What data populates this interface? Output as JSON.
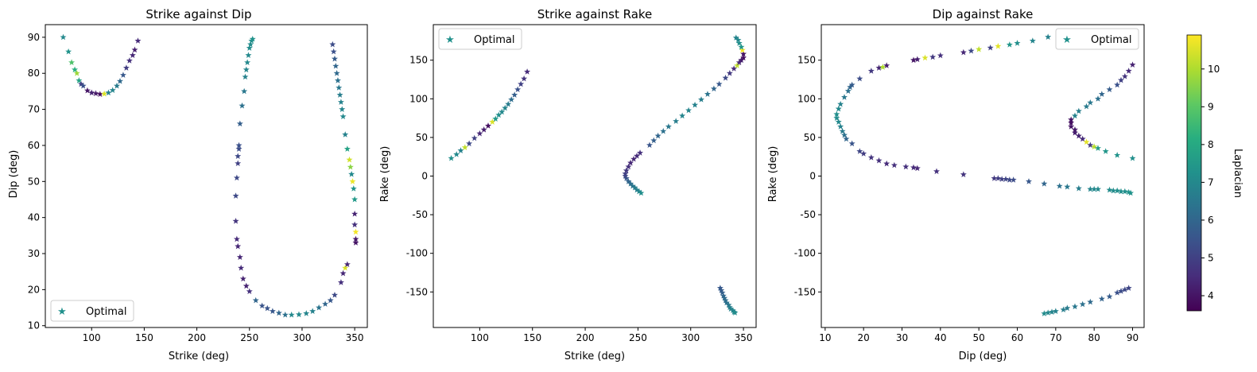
{
  "colorbar": {
    "label": "Laplacian",
    "min": 3.6,
    "max": 10.9,
    "ticks": [
      4,
      5,
      6,
      7,
      8,
      9,
      10
    ],
    "colormap": "viridis"
  },
  "chart_data": [
    {
      "type": "scatter",
      "title": "Strike against Dip",
      "xlabel": "Strike (deg)",
      "ylabel": "Dip (deg)",
      "xlim": [
        56,
        362
      ],
      "ylim": [
        9.5,
        93.5
      ],
      "xticks": [
        50,
        100,
        150,
        200,
        250,
        300,
        350
      ],
      "yticks": [
        10,
        20,
        30,
        40,
        50,
        60,
        70,
        80,
        90
      ],
      "legend": "lower left",
      "legend_label": "Optimal",
      "marker": "star",
      "points": [
        [
          73,
          90,
          7.0
        ],
        [
          78,
          86,
          7.3
        ],
        [
          81,
          83,
          8.8
        ],
        [
          84,
          81,
          8.2
        ],
        [
          86,
          80,
          9.8
        ],
        [
          88,
          78,
          7.8
        ],
        [
          90,
          77,
          5.0
        ],
        [
          92,
          76.5,
          5.4
        ],
        [
          96,
          75.2,
          4.0
        ],
        [
          100,
          74.6,
          4.3
        ],
        [
          104,
          74.4,
          4.1
        ],
        [
          108,
          74.2,
          3.8
        ],
        [
          112,
          74.3,
          10.5
        ],
        [
          116,
          74.6,
          6.8
        ],
        [
          120,
          75.3,
          6.9
        ],
        [
          124,
          76.5,
          6.6
        ],
        [
          127,
          77.8,
          6.1
        ],
        [
          130,
          79.5,
          5.6
        ],
        [
          133,
          81.5,
          4.9
        ],
        [
          136,
          83.5,
          4.6
        ],
        [
          139,
          85,
          4.4
        ],
        [
          141,
          86.5,
          4.2
        ],
        [
          144,
          89,
          4.5
        ],
        [
          237,
          46,
          5.2
        ],
        [
          238,
          51,
          5.2
        ],
        [
          239,
          55,
          5.0
        ],
        [
          239,
          57,
          5.2
        ],
        [
          240,
          59,
          5.3
        ],
        [
          240,
          60,
          5.4
        ],
        [
          241,
          66,
          5.8
        ],
        [
          243,
          71,
          6.3
        ],
        [
          245,
          75,
          6.5
        ],
        [
          246,
          79,
          6.8
        ],
        [
          247,
          81,
          6.9
        ],
        [
          248,
          83,
          7.0
        ],
        [
          249,
          85,
          7.0
        ],
        [
          250,
          87,
          7.1
        ],
        [
          251,
          88,
          7.1
        ],
        [
          252,
          89,
          7.2
        ],
        [
          253,
          89.5,
          7.3
        ],
        [
          237,
          39,
          4.7
        ],
        [
          238,
          34,
          4.5
        ],
        [
          239,
          32,
          4.4
        ],
        [
          241,
          29,
          4.4
        ],
        [
          242,
          26,
          4.5
        ],
        [
          244,
          23,
          4.3
        ],
        [
          247,
          21,
          4.3
        ],
        [
          250,
          19.5,
          4.6
        ],
        [
          256,
          17,
          6.0
        ],
        [
          262,
          15.5,
          5.5
        ],
        [
          267,
          14.8,
          5.5
        ],
        [
          272,
          14,
          5.6
        ],
        [
          278,
          13.5,
          6.0
        ],
        [
          284,
          13,
          6.3
        ],
        [
          290,
          13,
          7.0
        ],
        [
          297,
          13.1,
          7.0
        ],
        [
          304,
          13.4,
          6.9
        ],
        [
          310,
          14,
          6.8
        ],
        [
          316,
          15,
          6.4
        ],
        [
          322,
          16,
          6.0
        ],
        [
          327,
          17,
          5.6
        ],
        [
          331,
          18.5,
          5.2
        ],
        [
          337,
          22,
          4.6
        ],
        [
          339,
          24.5,
          4.4
        ],
        [
          341,
          26,
          10.5
        ],
        [
          343,
          27,
          4.4
        ],
        [
          329,
          88,
          5.3
        ],
        [
          330,
          86,
          5.4
        ],
        [
          331,
          84,
          5.7
        ],
        [
          332,
          82,
          6.0
        ],
        [
          333,
          80,
          6.1
        ],
        [
          334,
          78,
          6.3
        ],
        [
          335,
          76,
          6.5
        ],
        [
          336,
          74,
          6.7
        ],
        [
          337,
          72,
          6.8
        ],
        [
          338,
          70,
          6.9
        ],
        [
          339,
          68,
          7.0
        ],
        [
          341,
          63,
          6.8
        ],
        [
          343,
          59,
          7.8
        ],
        [
          345,
          56,
          10.4
        ],
        [
          346,
          54,
          9.6
        ],
        [
          347,
          52,
          7.0
        ],
        [
          348,
          50,
          10.7
        ],
        [
          349,
          48,
          7.3
        ],
        [
          350,
          45,
          7.5
        ],
        [
          350,
          41,
          4.3
        ],
        [
          350,
          38,
          4.6
        ],
        [
          351,
          36,
          10.8
        ],
        [
          351,
          34,
          4.1
        ],
        [
          351,
          33,
          4.0
        ]
      ]
    },
    {
      "type": "scatter",
      "title": "Strike against Rake",
      "xlabel": "Strike (deg)",
      "ylabel": "Rake (deg)",
      "xlim": [
        56,
        362
      ],
      "ylim": [
        -196,
        196
      ],
      "xticks": [
        50,
        100,
        150,
        200,
        250,
        300,
        350
      ],
      "yticks": [
        -150,
        -100,
        -50,
        0,
        50,
        100,
        150
      ],
      "legend": "upper left",
      "legend_label": "Optimal",
      "marker": "star",
      "points": [
        [
          73,
          23,
          7.2
        ],
        [
          78,
          28,
          7.0
        ],
        [
          82,
          33,
          6.8
        ],
        [
          86,
          37,
          10.2
        ],
        [
          90,
          42,
          5.2
        ],
        [
          95,
          49,
          5.0
        ],
        [
          100,
          55,
          4.4
        ],
        [
          104,
          60,
          4.2
        ],
        [
          108,
          65,
          3.9
        ],
        [
          112,
          70,
          10.5
        ],
        [
          115,
          74,
          7.5
        ],
        [
          118,
          79,
          7.2
        ],
        [
          121,
          83,
          7.0
        ],
        [
          124,
          88,
          6.9
        ],
        [
          127,
          93,
          6.6
        ],
        [
          130,
          99,
          6.2
        ],
        [
          133,
          105,
          5.8
        ],
        [
          136,
          112,
          5.4
        ],
        [
          139,
          119,
          5.0
        ],
        [
          142,
          126,
          4.7
        ],
        [
          145,
          135,
          4.5
        ],
        [
          253,
          -22,
          7.2
        ],
        [
          251,
          -20,
          7.0
        ],
        [
          249,
          -18,
          6.8
        ],
        [
          247,
          -15,
          6.7
        ],
        [
          245,
          -13,
          6.5
        ],
        [
          243,
          -10,
          6.3
        ],
        [
          241,
          -7,
          6.0
        ],
        [
          239,
          -3,
          5.6
        ],
        [
          238,
          0,
          5.2
        ],
        [
          238,
          3,
          5.0
        ],
        [
          239,
          7,
          4.8
        ],
        [
          241,
          12,
          4.6
        ],
        [
          243,
          17,
          4.4
        ],
        [
          246,
          22,
          4.4
        ],
        [
          249,
          26,
          4.5
        ],
        [
          252,
          30,
          4.6
        ],
        [
          261,
          40,
          5.5
        ],
        [
          265,
          46,
          5.8
        ],
        [
          269,
          52,
          6.0
        ],
        [
          274,
          58,
          6.3
        ],
        [
          279,
          64,
          6.5
        ],
        [
          286,
          71,
          6.7
        ],
        [
          292,
          78,
          6.9
        ],
        [
          298,
          85,
          6.9
        ],
        [
          304,
          92,
          6.8
        ],
        [
          310,
          99,
          6.7
        ],
        [
          316,
          106,
          6.4
        ],
        [
          322,
          113,
          6.0
        ],
        [
          327,
          119,
          5.6
        ],
        [
          333,
          127,
          5.2
        ],
        [
          337,
          133,
          4.8
        ],
        [
          341,
          139,
          4.5
        ],
        [
          344,
          143,
          10.2
        ],
        [
          346,
          147,
          4.4
        ],
        [
          348,
          150,
          4.2
        ],
        [
          350,
          153,
          3.9
        ],
        [
          350,
          158,
          4.0
        ],
        [
          349,
          163,
          10.8
        ],
        [
          348,
          167,
          7.4
        ],
        [
          346,
          172,
          7.2
        ],
        [
          345,
          176,
          7.0
        ],
        [
          343,
          179,
          6.9
        ],
        [
          328,
          -145,
          5.6
        ],
        [
          329,
          -148,
          5.7
        ],
        [
          330,
          -151,
          5.8
        ],
        [
          331,
          -155,
          6.0
        ],
        [
          332,
          -158,
          6.1
        ],
        [
          333,
          -161,
          6.2
        ],
        [
          334,
          -164,
          6.3
        ],
        [
          336,
          -167,
          6.5
        ],
        [
          337,
          -170,
          6.7
        ],
        [
          338,
          -172,
          6.8
        ],
        [
          340,
          -174,
          6.9
        ],
        [
          341,
          -176,
          7.0
        ],
        [
          342,
          -177,
          7.1
        ]
      ]
    },
    {
      "type": "scatter",
      "title": "Dip against Rake",
      "xlabel": "Dip (deg)",
      "ylabel": "Rake (deg)",
      "xlim": [
        9,
        93
      ],
      "ylim": [
        -196,
        196
      ],
      "xticks": [
        10,
        20,
        30,
        40,
        50,
        60,
        70,
        80,
        90
      ],
      "yticks": [
        -150,
        -100,
        -50,
        0,
        50,
        100,
        150
      ],
      "legend": "upper right",
      "legend_label": "Optimal",
      "marker": "star",
      "points": [
        [
          13,
          80,
          7.2
        ],
        [
          13,
          75,
          7.1
        ],
        [
          13.5,
          70,
          7.0
        ],
        [
          14,
          64,
          6.8
        ],
        [
          14.5,
          58,
          6.6
        ],
        [
          15,
          53,
          6.3
        ],
        [
          15.5,
          48,
          6.0
        ],
        [
          17,
          42,
          5.5
        ],
        [
          19,
          32,
          5.1
        ],
        [
          20,
          29,
          4.9
        ],
        [
          22,
          24,
          4.7
        ],
        [
          24,
          20,
          4.6
        ],
        [
          26,
          16,
          4.5
        ],
        [
          28,
          14,
          4.6
        ],
        [
          31,
          12,
          4.6
        ],
        [
          33,
          11,
          4.5
        ],
        [
          34,
          10,
          4.4
        ],
        [
          39,
          6,
          4.6
        ],
        [
          46,
          2,
          4.7
        ],
        [
          54,
          -3,
          4.8
        ],
        [
          55,
          -3,
          4.9
        ],
        [
          56,
          -4,
          5.0
        ],
        [
          57,
          -4,
          5.1
        ],
        [
          58,
          -5,
          5.2
        ],
        [
          59,
          -5,
          5.3
        ],
        [
          63,
          -7,
          5.6
        ],
        [
          67,
          -10,
          6.0
        ],
        [
          71,
          -13,
          6.3
        ],
        [
          73,
          -14,
          6.5
        ],
        [
          76,
          -16,
          6.7
        ],
        [
          79,
          -17,
          6.9
        ],
        [
          80,
          -17,
          7.0
        ],
        [
          81,
          -17,
          7.0
        ],
        [
          84,
          -18,
          7.1
        ],
        [
          85,
          -19,
          7.1
        ],
        [
          86,
          -19,
          7.2
        ],
        [
          87,
          -20,
          7.2
        ],
        [
          88,
          -20,
          7.2
        ],
        [
          89,
          -21,
          7.3
        ],
        [
          89.5,
          -22,
          7.3
        ],
        [
          13.5,
          87,
          7.0
        ],
        [
          14,
          93,
          6.8
        ],
        [
          15,
          102,
          6.5
        ],
        [
          16,
          110,
          6.3
        ],
        [
          16.5,
          115,
          6.0
        ],
        [
          17,
          118,
          5.7
        ],
        [
          19,
          126,
          5.3
        ],
        [
          22,
          136,
          4.8
        ],
        [
          24,
          140,
          4.4
        ],
        [
          26,
          143,
          4.2
        ],
        [
          25,
          141,
          10.0
        ],
        [
          33,
          150,
          4.0
        ],
        [
          34,
          151,
          4.2
        ],
        [
          36,
          153,
          10.5
        ],
        [
          38,
          154,
          4.8
        ],
        [
          40,
          156,
          4.6
        ],
        [
          46,
          160,
          4.4
        ],
        [
          48,
          162,
          5.2
        ],
        [
          50,
          164,
          10.2
        ],
        [
          53,
          166,
          5.0
        ],
        [
          55,
          168,
          10.6
        ],
        [
          58,
          170,
          7.4
        ],
        [
          60,
          172,
          7.2
        ],
        [
          64,
          175,
          6.9
        ],
        [
          68,
          180,
          6.8
        ],
        [
          74,
          73,
          4.0
        ],
        [
          74,
          69,
          3.9
        ],
        [
          74,
          64,
          4.0
        ],
        [
          75,
          60,
          4.1
        ],
        [
          75,
          56,
          4.2
        ],
        [
          76,
          52,
          4.3
        ],
        [
          77,
          48,
          4.5
        ],
        [
          78,
          44,
          10.6
        ],
        [
          79,
          40,
          4.8
        ],
        [
          80,
          38,
          10.1
        ],
        [
          81,
          36,
          7.6
        ],
        [
          83,
          32,
          7.4
        ],
        [
          86,
          27,
          7.3
        ],
        [
          90,
          23,
          7.2
        ],
        [
          75,
          78,
          6.8
        ],
        [
          76,
          84,
          6.7
        ],
        [
          78,
          90,
          6.6
        ],
        [
          79,
          95,
          6.5
        ],
        [
          81,
          100,
          6.3
        ],
        [
          82,
          106,
          6.0
        ],
        [
          84,
          112,
          5.7
        ],
        [
          86,
          118,
          5.4
        ],
        [
          87,
          124,
          5.0
        ],
        [
          88,
          129,
          4.7
        ],
        [
          89,
          136,
          4.5
        ],
        [
          90,
          144,
          4.3
        ],
        [
          67,
          -178,
          7.1
        ],
        [
          68,
          -177,
          7.0
        ],
        [
          69,
          -176,
          6.9
        ],
        [
          70,
          -175,
          6.8
        ],
        [
          72,
          -173,
          6.7
        ],
        [
          73,
          -171,
          6.6
        ],
        [
          75,
          -169,
          6.5
        ],
        [
          77,
          -166,
          6.3
        ],
        [
          79,
          -163,
          6.1
        ],
        [
          82,
          -159,
          5.9
        ],
        [
          84,
          -156,
          5.7
        ],
        [
          86,
          -151,
          5.4
        ],
        [
          87,
          -149,
          5.3
        ],
        [
          88,
          -147,
          5.2
        ],
        [
          89,
          -145,
          5.1
        ]
      ]
    }
  ]
}
